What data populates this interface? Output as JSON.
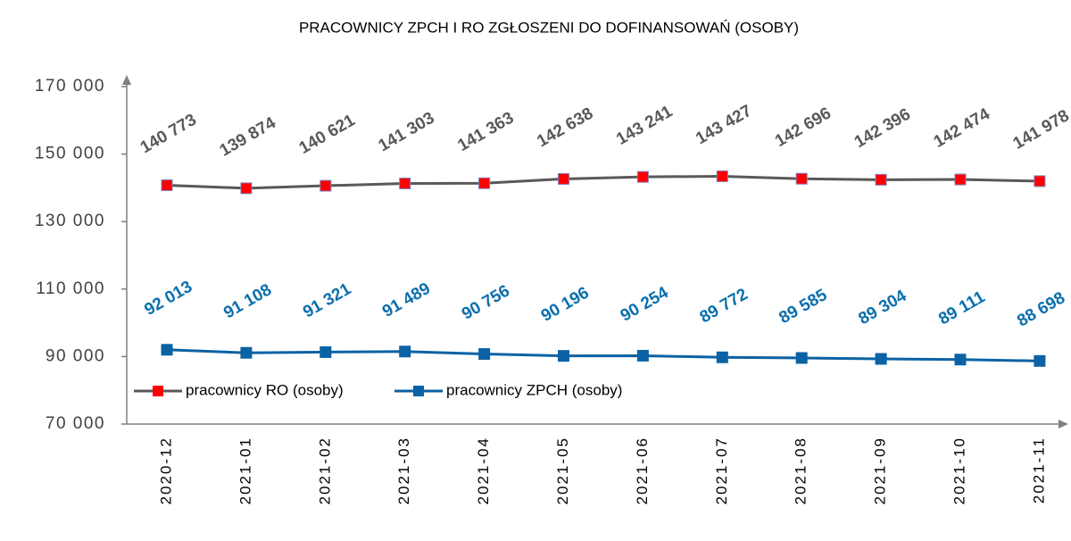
{
  "chart_data": {
    "type": "line",
    "title": "PRACOWNICY ZPCH I RO ZGŁOSZENI DO DOFINANSOWAŃ (OSOBY)",
    "categories": [
      "2020-12",
      "2021-01",
      "2021-02",
      "2021-03",
      "2021-04",
      "2021-05",
      "2021-06",
      "2021-07",
      "2021-08",
      "2021-09",
      "2021-10",
      "2021-11"
    ],
    "series": [
      {
        "name": "pracownicy RO (osoby)",
        "color": "#595959",
        "marker_color": "#ff0000",
        "values": [
          140773,
          139874,
          140621,
          141303,
          141363,
          142638,
          143241,
          143427,
          142696,
          142396,
          142474,
          141978
        ],
        "value_labels": [
          "140 773",
          "139 874",
          "140 621",
          "141 303",
          "141 363",
          "142 638",
          "143 241",
          "143 427",
          "142 696",
          "142 396",
          "142 474",
          "141 978"
        ]
      },
      {
        "name": "pracownicy ZPCH (osoby)",
        "color": "#0b62a4",
        "marker_color": "#0b62a4",
        "values": [
          92013,
          91108,
          91321,
          91489,
          90756,
          90196,
          90254,
          89772,
          89585,
          89304,
          89111,
          88698
        ],
        "value_labels": [
          "92 013",
          "91 108",
          "91 321",
          "91 489",
          "90 756",
          "90 196",
          "90 254",
          "89 772",
          "89 585",
          "89 304",
          "89 111",
          "88 698"
        ]
      }
    ],
    "ylim": [
      70000,
      170000
    ],
    "yticks": [
      {
        "value": 70000,
        "label": "70 000"
      },
      {
        "value": 90000,
        "label": "90 000"
      },
      {
        "value": 110000,
        "label": "110 000"
      },
      {
        "value": 130000,
        "label": "130 000"
      },
      {
        "value": 150000,
        "label": "150 000"
      },
      {
        "value": 170000,
        "label": "170 000"
      }
    ],
    "grid": false,
    "legend": "bottom-left"
  }
}
